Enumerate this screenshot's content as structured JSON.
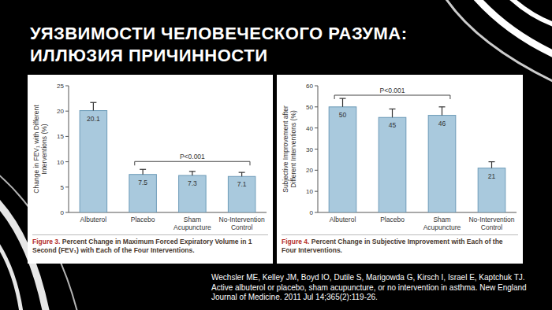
{
  "slide": {
    "title": [
      "УЯЗВИМОСТИ ЧЕЛОВЕЧЕСКОГО РАЗУМА:",
      "ИЛЛЮЗИЯ ПРИЧИННОСТИ"
    ],
    "citation": "Wechsler ME, Kelley JM, Boyd IO, Dutile S, Marigowda G, Kirsch I, Israel E, Kaptchuk TJ. Active albuterol or placebo, sham acupuncture, or no intervention in asthma. New England Journal of Medicine. 2011 Jul 14;365(2):119-26."
  },
  "chart_data": [
    {
      "type": "bar",
      "figure_label": "Figure 3.",
      "title": "Percent Change in Maximum Forced Expiratory Volume in 1 Second (FEV₁) with Each of the Four Interventions.",
      "ylabel": "Change in FEV₁ with Different Interventions (%)",
      "categories": [
        "Albuterol",
        "Placebo",
        "Sham Acupuncture",
        "No-Intervention Control"
      ],
      "values": [
        20.1,
        7.5,
        7.3,
        7.1
      ],
      "errors": [
        1.6,
        1.0,
        0.8,
        0.8
      ],
      "color": "#a9c9dd",
      "ylim": [
        0,
        25
      ],
      "yticks": [
        0,
        5,
        10,
        15,
        20,
        25
      ],
      "grid": false,
      "data_labels": true,
      "annotation": {
        "text": "P<0.001",
        "span": [
          "Placebo",
          "No-Intervention Control"
        ]
      }
    },
    {
      "type": "bar",
      "figure_label": "Figure 4.",
      "title": "Percent Change in Subjective Improvement with Each of the Four Interventions.",
      "ylabel": "Subjective Improvement after Different Interventions (%)",
      "categories": [
        "Albuterol",
        "Placebo",
        "Sham Acupuncture",
        "No-Intervention Control"
      ],
      "values": [
        50,
        45,
        46,
        21
      ],
      "errors": [
        4,
        4,
        4,
        3
      ],
      "color": "#a9c9dd",
      "ylim": [
        0,
        60
      ],
      "yticks": [
        0,
        10,
        20,
        30,
        40,
        50,
        60
      ],
      "grid": false,
      "data_labels": true,
      "annotation": {
        "text": "P<0.001",
        "span": [
          "Albuterol",
          "Sham Acupuncture"
        ]
      }
    }
  ]
}
